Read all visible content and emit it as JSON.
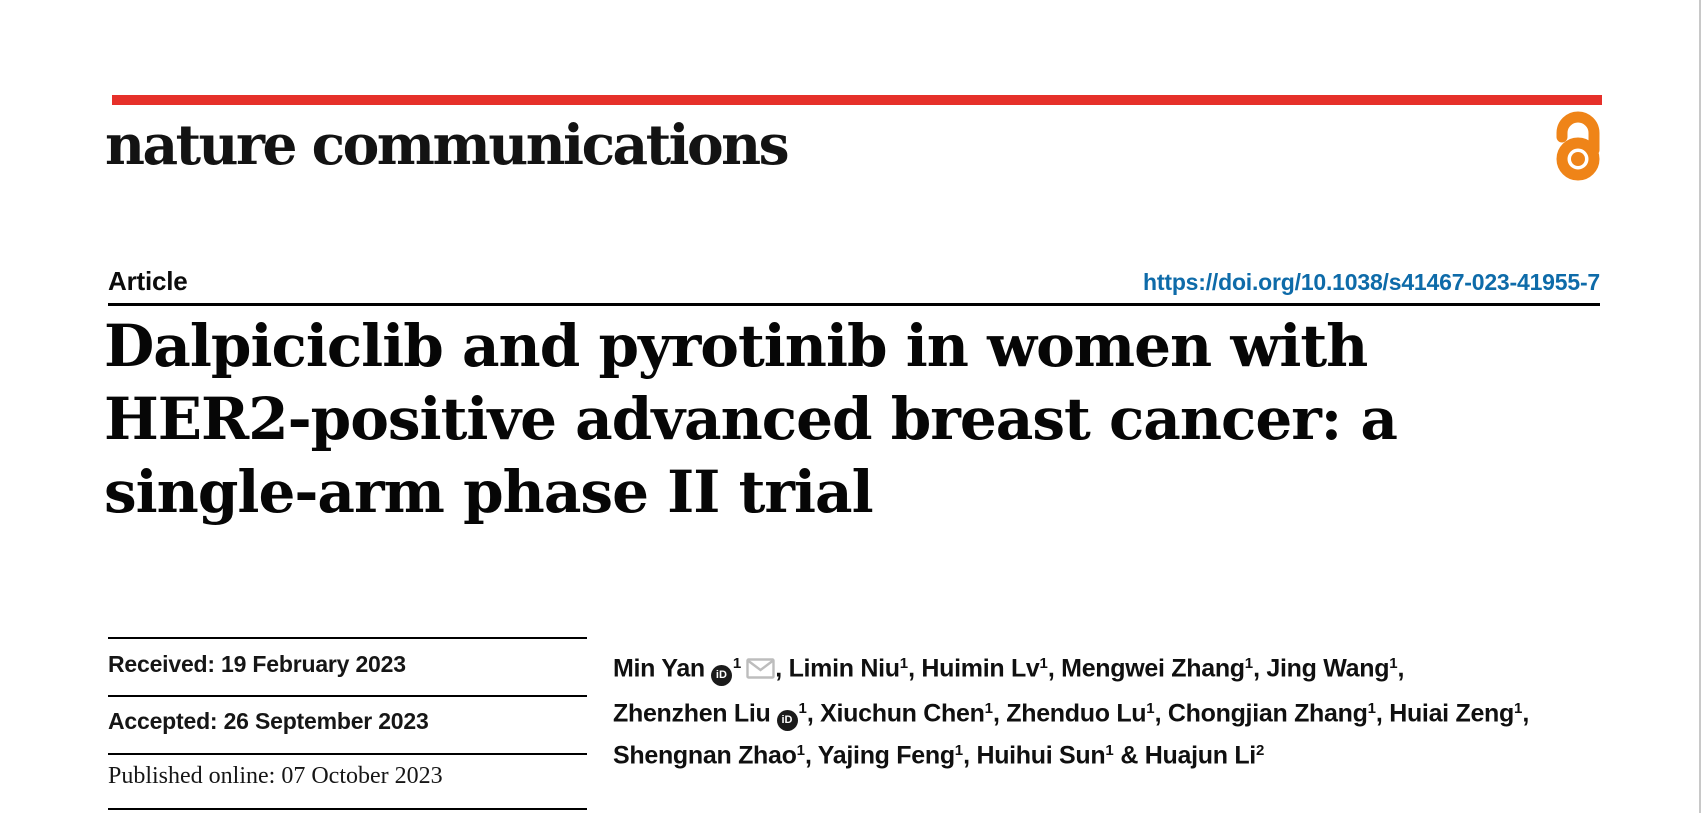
{
  "colors": {
    "masthead_bar": "#E6302A",
    "open_access_icon": "#EF8418",
    "doi_link": "#0E6BA9",
    "rule": "#000000",
    "page_edge_line": "#C8C8C8",
    "envelope_icon_gray": "#BDBDBD",
    "orcid_icon": "#1B1B1B"
  },
  "masthead": {
    "brand": "nature communications",
    "open_access_icon": "open-lock-icon"
  },
  "article": {
    "kicker": "Article",
    "doi": "https://doi.org/10.1038/s41467-023-41955-7"
  },
  "title": {
    "lines": [
      "Dalpiciclib and pyrotinib in women with",
      "HER2-positive advanced breast cancer: a",
      "single-arm phase II trial"
    ]
  },
  "dates": {
    "rows": [
      {
        "text": "Received: 19 February 2023"
      },
      {
        "text": "Accepted: 26 September 2023"
      },
      {
        "text": "Published online: 07 October 2023"
      }
    ]
  },
  "authors": {
    "orcid_glyph": "iD",
    "orcid_icon_name": "orcid-id-icon",
    "email_icon_name": "envelope-icon",
    "lines": [
      [
        {
          "name": "Min Yan",
          "orcid": true,
          "sup": "1",
          "email": true,
          "trail": ", "
        },
        {
          "name": "Limin Niu",
          "sup": "1",
          "trail": ", "
        },
        {
          "name": "Huimin Lv",
          "sup": "1",
          "trail": ", "
        },
        {
          "name": "Mengwei Zhang",
          "sup": "1",
          "trail": ", "
        },
        {
          "name": "Jing Wang",
          "sup": "1",
          "trail": ","
        }
      ],
      [
        {
          "name": "Zhenzhen Liu",
          "orcid": true,
          "sup": "1",
          "trail": ", "
        },
        {
          "name": "Xiuchun Chen",
          "sup": "1",
          "trail": ", "
        },
        {
          "name": "Zhenduo Lu",
          "sup": "1",
          "trail": ", "
        },
        {
          "name": "Chongjian Zhang",
          "sup": "1",
          "trail": ", "
        },
        {
          "name": "Huiai Zeng",
          "sup": "1",
          "trail": ","
        }
      ],
      [
        {
          "name": "Shengnan Zhao",
          "sup": "1",
          "trail": ", "
        },
        {
          "name": "Yajing Feng",
          "sup": "1",
          "trail": ", "
        },
        {
          "name": "Huihui Sun",
          "sup": "1",
          "trail": " & "
        },
        {
          "name": "Huajun Li",
          "sup": "2",
          "trail": ""
        }
      ]
    ]
  }
}
